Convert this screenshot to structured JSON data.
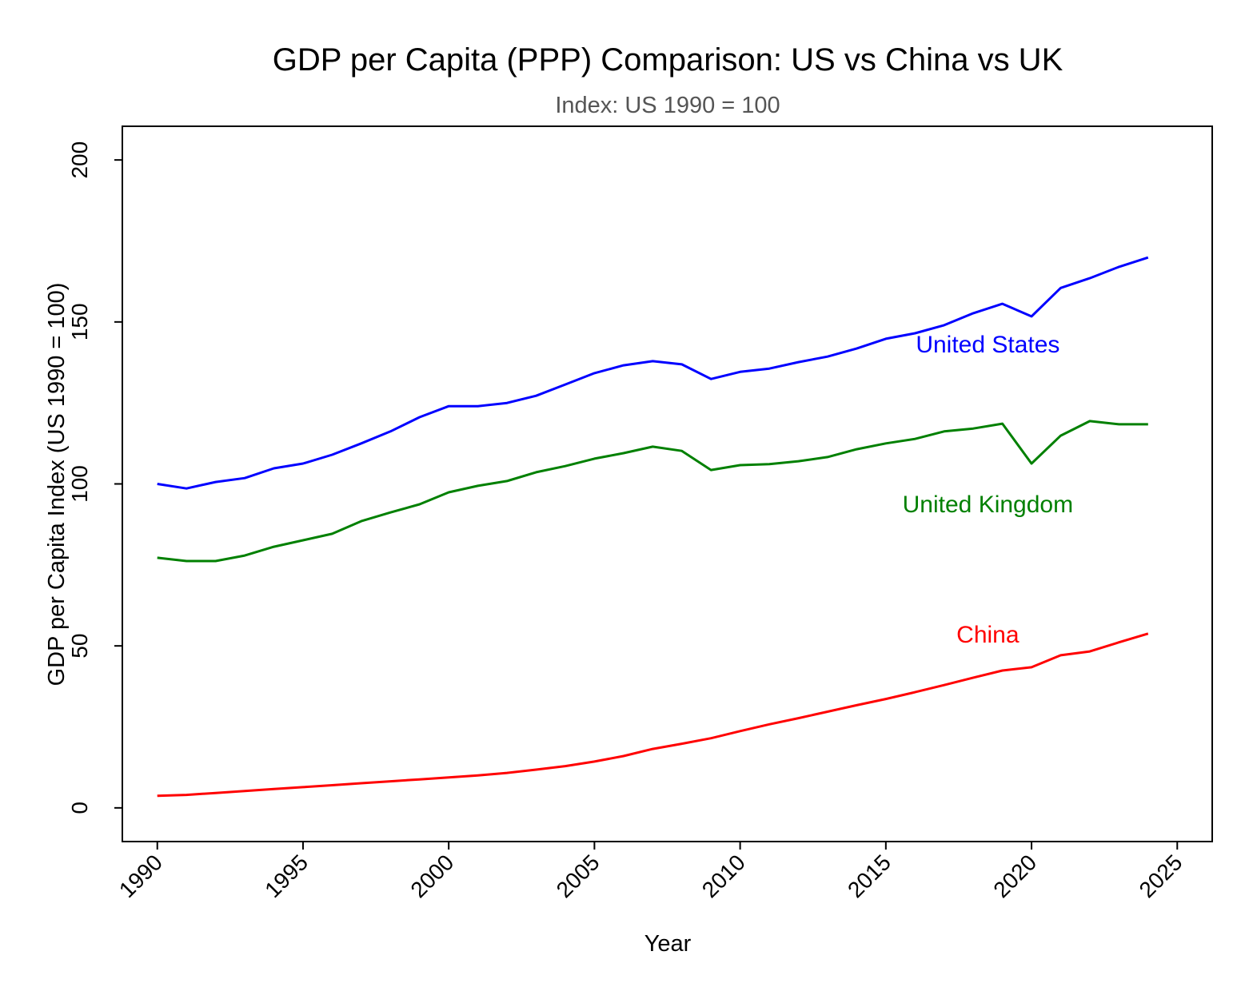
{
  "chart_data": {
    "type": "line",
    "title": "GDP per Capita (PPP) Comparison: US vs China vs UK",
    "subtitle": "Index: US 1990 = 100",
    "xlabel": "Year",
    "ylabel": "GDP per Capita Index (US 1990 = 100)",
    "xlim": [
      1988.8,
      2026.2
    ],
    "ylim": [
      -10.4,
      210.4
    ],
    "xticks": [
      1990,
      1995,
      2000,
      2005,
      2010,
      2015,
      2020,
      2025
    ],
    "yticks": [
      0,
      50,
      100,
      150,
      200
    ],
    "grid": false,
    "legend": "none (inline labels)",
    "x": [
      1990,
      1991,
      1992,
      1993,
      1994,
      1995,
      1996,
      1997,
      1998,
      1999,
      2000,
      2001,
      2002,
      2003,
      2004,
      2005,
      2006,
      2007,
      2008,
      2009,
      2010,
      2011,
      2012,
      2013,
      2014,
      2015,
      2016,
      2017,
      2018,
      2019,
      2020,
      2021,
      2022,
      2023,
      2024
    ],
    "series": [
      {
        "name": "United States",
        "color": "#0000ff",
        "label_at": [
          2018.5,
          143
        ],
        "values": [
          100,
          98.6,
          100.6,
          101.8,
          104.8,
          106.3,
          109.0,
          112.5,
          116.2,
          120.6,
          124.0,
          124.0,
          125.0,
          127.2,
          130.7,
          134.2,
          136.6,
          137.9,
          136.9,
          132.4,
          134.6,
          135.6,
          137.6,
          139.3,
          141.8,
          144.8,
          146.5,
          149.0,
          152.7,
          155.6,
          151.7,
          160.5,
          163.5,
          167.0,
          169.9
        ]
      },
      {
        "name": "United Kingdom",
        "color": "#008000",
        "label_at": [
          2018.5,
          93.7
        ],
        "values": [
          77.2,
          76.2,
          76.2,
          77.9,
          80.6,
          82.6,
          84.6,
          88.5,
          91.2,
          93.7,
          97.4,
          99.4,
          100.9,
          103.6,
          105.5,
          107.8,
          109.5,
          111.5,
          110.2,
          104.3,
          105.8,
          106.1,
          107.0,
          108.3,
          110.7,
          112.5,
          113.9,
          116.2,
          117.1,
          118.6,
          106.3,
          114.9,
          119.4,
          118.4,
          118.4
        ]
      },
      {
        "name": "China",
        "color": "#ff0000",
        "label_at": [
          2018.5,
          53.5
        ],
        "values": [
          3.7,
          4.0,
          4.6,
          5.2,
          5.8,
          6.4,
          7.0,
          7.6,
          8.2,
          8.8,
          9.4,
          10.0,
          10.8,
          11.8,
          12.9,
          14.3,
          16.0,
          18.2,
          19.8,
          21.5,
          23.7,
          25.8,
          27.7,
          29.7,
          31.7,
          33.6,
          35.7,
          37.9,
          40.2,
          42.4,
          43.4,
          47.1,
          48.3,
          51.1,
          53.8
        ]
      }
    ]
  }
}
